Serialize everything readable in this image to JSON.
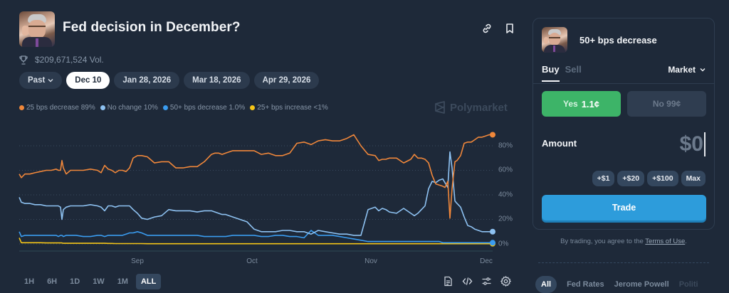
{
  "header": {
    "title": "Fed decision in December?",
    "volume": "$209,671,524 Vol.",
    "icons": [
      "link-icon",
      "bookmark-icon"
    ]
  },
  "date_tabs": {
    "past_label": "Past",
    "items": [
      "Dec 10",
      "Jan 28, 2026",
      "Mar 18, 2026",
      "Apr 29, 2026"
    ],
    "active": "Dec 10"
  },
  "legend": [
    {
      "label": "25 bps decrease 89%",
      "color": "#f0873a"
    },
    {
      "label": "No change 10%",
      "color": "#8ec2f2"
    },
    {
      "label": "50+ bps decrease 1.0%",
      "color": "#3a9cf0"
    },
    {
      "label": "25+ bps increase <1%",
      "color": "#f5c518"
    }
  ],
  "watermark": "Polymarket",
  "chart_data": {
    "type": "line",
    "title": "Fed decision in December?",
    "xlabel": "",
    "ylabel": "",
    "ylim": [
      0,
      90
    ],
    "yticks": [
      "0%",
      "20%",
      "40%",
      "60%",
      "80%"
    ],
    "xticks": [
      "Sep",
      "Oct",
      "Nov",
      "Dec"
    ],
    "grid": true,
    "legend_position": "top-left",
    "x": [
      0,
      3,
      8,
      15,
      22,
      30,
      38,
      45,
      52,
      55,
      58,
      60,
      62,
      66,
      72,
      80,
      90,
      100,
      110,
      115,
      120,
      125,
      130,
      135,
      140,
      145,
      150,
      155,
      160,
      166,
      172,
      180,
      190,
      200,
      210,
      220,
      230,
      240,
      250,
      260,
      270,
      275,
      280,
      285,
      290,
      300,
      310,
      320,
      330,
      340,
      350,
      360,
      370,
      380,
      390,
      400,
      410,
      420,
      430,
      440,
      450,
      460,
      470,
      480,
      490,
      500,
      505,
      510,
      515,
      520,
      530,
      540,
      550,
      555,
      560,
      565,
      570,
      575,
      580,
      585,
      590,
      595,
      598,
      602,
      605,
      608,
      612,
      615,
      620,
      625,
      630,
      635,
      640,
      645,
      650,
      655,
      660,
      665
    ],
    "series": [
      {
        "name": "25 bps decrease",
        "color": "#f0873a",
        "values": [
          57,
          54,
          57,
          57,
          58,
          59,
          60,
          60,
          61,
          60,
          60,
          68,
          62,
          57,
          60,
          60,
          60,
          61,
          60,
          58,
          64,
          61,
          60,
          58,
          60,
          60,
          59,
          62,
          70,
          72,
          72,
          71,
          66,
          67,
          67,
          62,
          62,
          63,
          63,
          67,
          73,
          74,
          74,
          73,
          74,
          76,
          76,
          76,
          76,
          73,
          74,
          72,
          72,
          74,
          82,
          83,
          81,
          84,
          85,
          84,
          84,
          86,
          89,
          80,
          73,
          72,
          68,
          69,
          69,
          70,
          70,
          66,
          69,
          73,
          70,
          70,
          69,
          66,
          56,
          49,
          48,
          47,
          46,
          51,
          21,
          45,
          67,
          68,
          72,
          82,
          83,
          83,
          85,
          87,
          87,
          88,
          89,
          89
        ]
      },
      {
        "name": "No change",
        "color": "#8ec2f2",
        "values": [
          38,
          34,
          33,
          33,
          32,
          32,
          31,
          31,
          31,
          31,
          30,
          20,
          28,
          30,
          31,
          31,
          31,
          32,
          31,
          30,
          27,
          31,
          31,
          30,
          31,
          31,
          31,
          31,
          28,
          25,
          21,
          20,
          22,
          23,
          28,
          27,
          27,
          27,
          26,
          27,
          27,
          26,
          25,
          24,
          24,
          22,
          20,
          18,
          12,
          10,
          10,
          10,
          11,
          11,
          10,
          10,
          8,
          11,
          10,
          9,
          8,
          8,
          7,
          7,
          28,
          30,
          27,
          29,
          28,
          26,
          25,
          29,
          25,
          23,
          25,
          28,
          31,
          45,
          51,
          50,
          52,
          53,
          50,
          46,
          75,
          62,
          35,
          33,
          30,
          22,
          15,
          14,
          12,
          11,
          10,
          10,
          10,
          10
        ]
      },
      {
        "name": "50+ bps decrease",
        "color": "#3a9cf0",
        "values": [
          10,
          6,
          7,
          7,
          7,
          7,
          7,
          7,
          7,
          6,
          7,
          7,
          6,
          7,
          7,
          7,
          6,
          6,
          7,
          7,
          6,
          7,
          7,
          7,
          7,
          7,
          8,
          9,
          9,
          10,
          9,
          7,
          7,
          7,
          7,
          7,
          7,
          7,
          7,
          6,
          6,
          6,
          6,
          6,
          6,
          7,
          7,
          7,
          7,
          6,
          6,
          7,
          7,
          6,
          6,
          5,
          11,
          7,
          7,
          7,
          6,
          5,
          4,
          3,
          2,
          2,
          2,
          2,
          2,
          2,
          2,
          2,
          2,
          2,
          2,
          2,
          2,
          2,
          2,
          2,
          2,
          1,
          1,
          1,
          1,
          1,
          1,
          1,
          1,
          1,
          1,
          1,
          1,
          1,
          1,
          1,
          1,
          1
        ]
      },
      {
        "name": "25+ bps increase",
        "color": "#f5c518",
        "values": [
          5,
          1,
          1,
          1,
          1,
          1,
          0.8,
          0.8,
          0.8,
          0.8,
          0.8,
          0.8,
          0.5,
          0.5,
          0.5,
          0.5,
          0.5,
          0.5,
          0.5,
          0.5,
          0.5,
          0.4,
          0.4,
          0.3,
          0.3,
          0.3,
          0.3,
          0.3,
          0.3,
          0.3,
          0.3,
          0.2,
          0.2,
          0.2,
          0.2,
          0.2,
          0.2,
          0.2,
          0.2,
          0.2,
          0.2,
          0.2,
          0.2,
          0.2,
          0.2,
          0.2,
          0.2,
          0.2,
          0.2,
          0.2,
          0.2,
          0.2,
          0.2,
          0.2,
          0.2,
          0.2,
          0.2,
          0.2,
          0.2,
          0.2,
          0.2,
          0.2,
          0.2,
          0.2,
          0.2,
          0.2,
          0.2,
          0.2,
          0.2,
          0.2,
          0.2,
          0.2,
          0.2,
          0.2,
          0.2,
          0.2,
          0.2,
          0.2,
          0.2,
          0.2,
          0.2,
          0.2,
          0.2,
          0.2,
          0.2,
          0.2,
          0.2,
          0.2,
          0.2,
          0.2,
          0.2,
          0.2,
          0.2,
          0.2,
          0.2,
          0.2,
          0.2,
          0.2
        ]
      }
    ]
  },
  "time_ranges": {
    "items": [
      "1H",
      "6H",
      "1D",
      "1W",
      "1M",
      "ALL"
    ],
    "active": "ALL"
  },
  "chart_tools": [
    "document-icon",
    "code-icon",
    "sliders-icon",
    "gear-icon"
  ],
  "trade_panel": {
    "outcome": "50+ bps decrease",
    "tabs": [
      "Buy",
      "Sell"
    ],
    "active_tab": "Buy",
    "order_type": "Market",
    "yes_label": "Yes",
    "yes_price": "1.1¢",
    "no_label": "No 99¢",
    "amount_label": "Amount",
    "amount_value": "$0",
    "quick_add": [
      "+$1",
      "+$20",
      "+$100",
      "Max"
    ],
    "trade_button": "Trade",
    "terms_prefix": "By trading, you agree to the ",
    "terms_link": "Terms of Use",
    "terms_suffix": "."
  },
  "categories": {
    "items": [
      "All",
      "Fed Rates",
      "Jerome Powell",
      "Politi"
    ],
    "active": "All"
  }
}
